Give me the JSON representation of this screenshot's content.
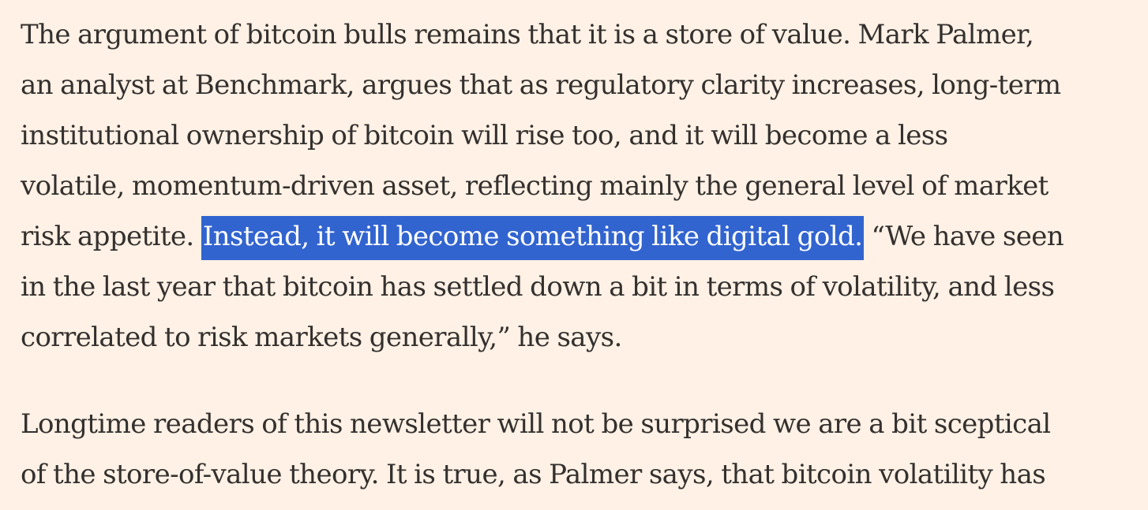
{
  "article": {
    "paragraph_1": {
      "line_1": "The argument of bitcoin bulls remains that it is a store of value. Mark Palmer,",
      "line_2": "an analyst at Benchmark, argues that as regulatory clarity increases, long-term",
      "line_3": "institutional ownership of bitcoin will rise too, and it will become a less",
      "line_4": "volatile, momentum-driven asset, reflecting mainly the general level of market",
      "line_5_before": "risk appetite. ",
      "line_5_selected": "Instead, it will become something like digital gold.",
      "line_5_after": " “We have seen",
      "line_6": "in the last year that bitcoin has settled down a bit in terms of volatility, and less",
      "line_7": "correlated to risk markets generally,” he says."
    },
    "paragraph_2": {
      "line_1": "Longtime readers of this newsletter will not be surprised we are a bit sceptical",
      "line_2": "of the store-of-value theory. It is true, as Palmer says, that bitcoin volatility has"
    }
  },
  "colors": {
    "background": "#fff1e5",
    "text": "#33302e",
    "selection_background": "#3264d0",
    "selection_text": "#ffffff"
  }
}
